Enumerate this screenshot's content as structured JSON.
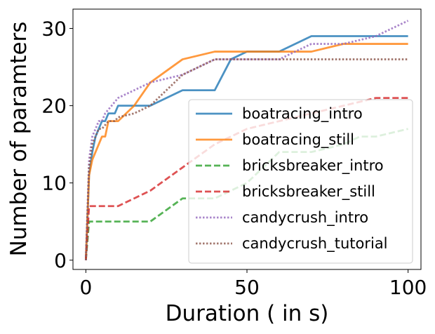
{
  "chart_data": {
    "type": "line",
    "title": "",
    "xlabel": "Duration ( in s)",
    "ylabel": "Number of paramters",
    "xlim": [
      -4,
      104
    ],
    "ylim": [
      -1.2,
      32.5
    ],
    "xticks": [
      0,
      50,
      100
    ],
    "yticks": [
      0,
      10,
      20,
      30
    ],
    "grid": false,
    "legend": "lower-right",
    "series": [
      {
        "name": "boatracing_intro",
        "color": "#1f77b4",
        "dash": "solid",
        "x": [
          0,
          1,
          2,
          3,
          4,
          5,
          6,
          7,
          8,
          9,
          10,
          15,
          20,
          25,
          30,
          35,
          40,
          45,
          50,
          55,
          60,
          65,
          70,
          75,
          80,
          85,
          90,
          95,
          100
        ],
        "y": [
          0,
          11,
          14,
          16,
          17,
          18,
          18,
          19,
          19,
          19,
          20,
          20,
          20,
          21,
          22,
          22,
          22,
          26,
          27,
          27,
          27,
          28,
          29,
          29,
          29,
          29,
          29,
          29,
          29
        ]
      },
      {
        "name": "boatracing_still",
        "color": "#ff7f0e",
        "dash": "solid",
        "x": [
          0,
          1,
          2,
          3,
          4,
          5,
          6,
          7,
          8,
          9,
          10,
          15,
          20,
          25,
          30,
          35,
          40,
          45,
          50,
          55,
          60,
          65,
          70,
          75,
          80,
          85,
          90,
          95,
          100
        ],
        "y": [
          0,
          11,
          13,
          14,
          15,
          16,
          16,
          18,
          18,
          18,
          18,
          20,
          23,
          24.5,
          26,
          26.5,
          27,
          27,
          27,
          27,
          27,
          27,
          27,
          27.5,
          28,
          28,
          28,
          28,
          28
        ]
      },
      {
        "name": "bricksbreaker_intro",
        "color": "#2ca02c",
        "dash": "dashed",
        "x": [
          0,
          1,
          2,
          3,
          4,
          5,
          10,
          15,
          20,
          25,
          30,
          35,
          40,
          45,
          50,
          55,
          60,
          65,
          70,
          75,
          80,
          85,
          90,
          95,
          100
        ],
        "y": [
          0,
          5,
          5,
          5,
          5,
          5,
          5,
          5,
          5,
          6.5,
          8,
          8,
          8,
          9,
          10,
          12,
          14,
          14,
          14,
          14.5,
          15,
          16,
          16,
          16.5,
          17
        ]
      },
      {
        "name": "bricksbreaker_still",
        "color": "#d62728",
        "dash": "dashed",
        "x": [
          0,
          1,
          2,
          3,
          4,
          5,
          10,
          15,
          20,
          25,
          30,
          35,
          40,
          45,
          50,
          55,
          60,
          65,
          70,
          75,
          80,
          85,
          90,
          95,
          100
        ],
        "y": [
          0,
          7,
          7,
          7,
          7,
          7,
          7,
          8,
          9,
          10.5,
          12,
          13.5,
          15,
          16,
          17,
          17.5,
          18,
          18.5,
          19,
          19.5,
          20,
          20.5,
          21,
          21,
          21
        ]
      },
      {
        "name": "candycrush_intro",
        "color": "#9467bd",
        "dash": "dotted",
        "x": [
          0,
          1,
          2,
          3,
          4,
          5,
          6,
          7,
          8,
          9,
          10,
          15,
          20,
          25,
          30,
          35,
          40,
          45,
          50,
          55,
          60,
          65,
          70,
          75,
          80,
          85,
          90,
          95,
          100
        ],
        "y": [
          0,
          13,
          16,
          17,
          18,
          18,
          19,
          19.5,
          20,
          20.5,
          21,
          22,
          23,
          23.5,
          24,
          25,
          26,
          26,
          26,
          26,
          26,
          27,
          28,
          28,
          28,
          28.5,
          29,
          30,
          31
        ]
      },
      {
        "name": "candycrush_tutorial",
        "color": "#8c564b",
        "dash": "dotted",
        "x": [
          0,
          1,
          2,
          3,
          4,
          5,
          6,
          7,
          8,
          9,
          10,
          15,
          20,
          25,
          30,
          35,
          40,
          45,
          50,
          55,
          60,
          65,
          70,
          75,
          80,
          85,
          90,
          95,
          100
        ],
        "y": [
          0,
          12,
          15,
          16,
          17,
          17,
          17.5,
          18,
          18,
          18,
          18.5,
          19,
          20,
          22,
          24,
          25,
          26,
          26,
          26,
          26,
          26,
          26,
          26,
          26,
          26,
          26,
          26,
          26,
          26
        ]
      }
    ]
  }
}
